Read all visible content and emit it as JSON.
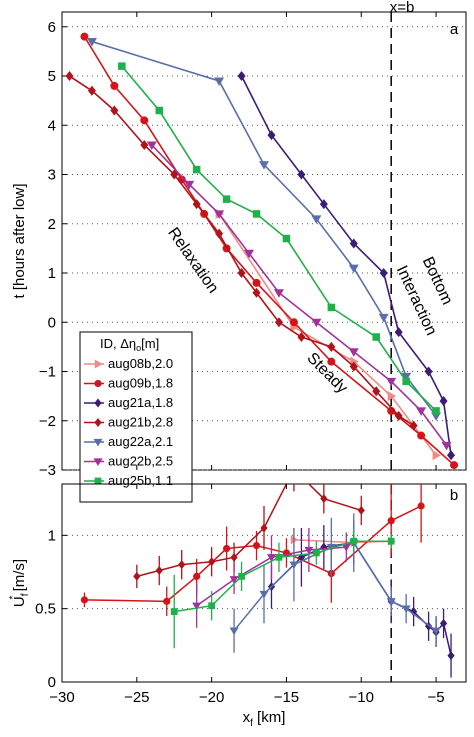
{
  "x_axis": {
    "label": "x",
    "label_sub": "f",
    "label_unit": " [km]",
    "ticks": [
      -30,
      -25,
      -20,
      -15,
      -10,
      -5
    ],
    "tick_labels": [
      "−30",
      "−25",
      "−20",
      "−15",
      "−10",
      "−5"
    ],
    "lim": [
      -30,
      -3
    ]
  },
  "xb": {
    "value": -8,
    "label": "x=b"
  },
  "chart_data": [
    {
      "type": "line",
      "panel_label": "a",
      "ylabel": "t [hours after low]",
      "ylim": [
        -3,
        6.3
      ],
      "yticks": [
        -3,
        -2,
        -1,
        0,
        1,
        2,
        3,
        4,
        5,
        6
      ],
      "ytick_labels": [
        "−3",
        "−2",
        "−1",
        "0",
        "1",
        "2",
        "3",
        "4",
        "5",
        "6"
      ],
      "grid": "horizontal dotted",
      "legend_placement": "bottom-left",
      "legend_title": "ID, Δη",
      "legend_title_sub": "o",
      "legend_title_unit": "[m]",
      "annotations": [
        {
          "text": "Relaxation",
          "x": -21.5,
          "y": 1.2,
          "rotate": 55
        },
        {
          "text": "Steady",
          "x": -12.5,
          "y": -1.1,
          "rotate": 45
        },
        {
          "text": "Bottom",
          "x": -5.2,
          "y": 0.8,
          "rotate": 65
        },
        {
          "text": "Interaction",
          "x": -6.6,
          "y": 0.4,
          "rotate": 65
        }
      ],
      "series": [
        {
          "name": "aug08b,2.0",
          "color": "#f08a84",
          "marker": "triangle-right",
          "x": [
            -19.5,
            -14.5,
            -10.5,
            -8.0,
            -5.0
          ],
          "y": [
            2.2,
            -0.1,
            -0.8,
            -1.5,
            -2.7
          ]
        },
        {
          "name": "aug09b,1.8",
          "color": "#d41419",
          "marker": "circle",
          "x": [
            -28.5,
            -26.5,
            -24.5,
            -22.0,
            -20.5,
            -19.0,
            -17.0,
            -14.5,
            -12.0,
            -8.0,
            -6.0,
            -3.8
          ],
          "y": [
            5.8,
            4.8,
            4.1,
            2.9,
            2.2,
            1.5,
            0.8,
            0.0,
            -0.8,
            -1.8,
            -2.3,
            -2.9
          ]
        },
        {
          "name": "aug21a,1.8",
          "color": "#3c1d75",
          "marker": "diamond",
          "x": [
            -18.0,
            -16.0,
            -14.0,
            -12.5,
            -10.5,
            -8.5,
            -7.5,
            -5.5,
            -4.5,
            -4.0
          ],
          "y": [
            5.0,
            3.8,
            3.0,
            2.4,
            1.6,
            1.0,
            -0.2,
            -1.0,
            -1.6,
            -2.7
          ]
        },
        {
          "name": "aug21b,2.8",
          "color": "#b0131a",
          "marker": "diamond",
          "x": [
            -29.5,
            -28.0,
            -26.5,
            -24.5,
            -22.5,
            -21.0,
            -19.5,
            -18.0,
            -17.0,
            -15.5,
            -14.0,
            -12.0,
            -10.5,
            -9.0,
            -7.5,
            -6.5
          ],
          "y": [
            5.0,
            4.7,
            4.3,
            3.6,
            3.0,
            2.4,
            1.8,
            1.0,
            0.6,
            0.0,
            -0.3,
            -0.5,
            -0.9,
            -1.4,
            -1.9,
            -2.1
          ]
        },
        {
          "name": "aug22a,2.1",
          "color": "#586fa8",
          "marker": "triangle-down",
          "x": [
            -28.0,
            -19.5,
            -16.5,
            -13.0,
            -10.5,
            -8.5,
            -7.0,
            -5.0
          ],
          "y": [
            5.7,
            4.9,
            3.2,
            2.1,
            1.1,
            0.1,
            -1.1,
            -1.9
          ]
        },
        {
          "name": "aug22b,2.5",
          "color": "#a0329a",
          "marker": "triangle-down",
          "x": [
            -24.0,
            -21.5,
            -19.5,
            -17.5,
            -15.5,
            -13.0,
            -10.5,
            -8.0,
            -6.0,
            -4.3
          ],
          "y": [
            3.6,
            2.8,
            2.2,
            1.4,
            0.6,
            0.0,
            -0.6,
            -1.2,
            -1.8,
            -2.5
          ]
        },
        {
          "name": "aug25b,1.1",
          "color": "#1fb04a",
          "marker": "square",
          "x": [
            -26.0,
            -23.5,
            -21.0,
            -19.0,
            -17.0,
            -15.0,
            -12.0,
            -9.0,
            -7.0,
            -5.0
          ],
          "y": [
            5.2,
            4.3,
            3.1,
            2.5,
            2.2,
            1.7,
            0.3,
            -0.3,
            -1.2,
            -1.8
          ]
        }
      ]
    },
    {
      "type": "scatter",
      "panel_label": "b",
      "ylabel": "U",
      "ylabel_sub": "f",
      "ylabel_sup": "*",
      "ylabel_unit": " [m/s]",
      "ylim": [
        0,
        1.35
      ],
      "yticks": [
        0,
        0.5,
        1
      ],
      "ytick_labels": [
        "0",
        "0.5",
        "1"
      ],
      "grid": "horizontal dotted",
      "series": [
        {
          "color": "#f08a84",
          "marker": "triangle-right",
          "x": [
            -14.5,
            -10.5,
            -8.0
          ],
          "y": [
            0.97,
            0.95,
            0.96
          ],
          "err": [
            0.08,
            0.08,
            0.08
          ]
        },
        {
          "color": "#d41419",
          "marker": "circle",
          "x": [
            -28.5,
            -23.0,
            -21.0,
            -19.0,
            -17.0,
            -15.0,
            -12.0,
            -8.0,
            -6.0
          ],
          "y": [
            0.56,
            0.55,
            0.72,
            0.91,
            0.93,
            0.88,
            0.74,
            1.1,
            1.2
          ],
          "err": [
            0.05,
            0.1,
            0.12,
            0.15,
            0.1,
            0.1,
            0.2,
            0.25,
            0.25
          ]
        },
        {
          "color": "#3c1d75",
          "marker": "diamond",
          "x": [
            -16.0,
            -14.0,
            -12.5,
            -10.5,
            -8.0,
            -6.5,
            -5.5,
            -5.0,
            -4.5,
            -4.0
          ],
          "y": [
            0.65,
            0.85,
            0.92,
            0.95,
            0.55,
            0.48,
            0.38,
            0.34,
            0.4,
            0.18
          ],
          "err": [
            0.15,
            0.2,
            0.15,
            0.15,
            0.15,
            0.1,
            0.1,
            0.1,
            0.1,
            0.15
          ]
        },
        {
          "color": "#b0131a",
          "marker": "diamond",
          "x": [
            -25.0,
            -23.5,
            -22.0,
            -20.0,
            -18.5,
            -16.5,
            -14.5,
            -12.5,
            -10.0
          ],
          "y": [
            0.72,
            0.76,
            0.8,
            0.82,
            0.85,
            1.05,
            1.45,
            1.25,
            1.17
          ],
          "err": [
            0.08,
            0.1,
            0.1,
            0.1,
            0.1,
            0.15,
            0.15,
            0.1,
            0.1
          ]
        },
        {
          "color": "#586fa8",
          "marker": "triangle-down",
          "x": [
            -18.5,
            -16.5,
            -14.5,
            -12.0,
            -10.5,
            -8.0,
            -7.0,
            -5.0
          ],
          "y": [
            0.35,
            0.6,
            0.8,
            0.92,
            0.95,
            0.55,
            0.5,
            0.35
          ],
          "err": [
            0.15,
            0.2,
            0.25,
            0.2,
            0.2,
            0.1,
            0.1,
            0.1
          ]
        },
        {
          "color": "#a0329a",
          "marker": "triangle-down",
          "x": [
            -21.0,
            -18.5,
            -16.0,
            -13.5,
            -11.0
          ],
          "y": [
            0.52,
            0.7,
            0.85,
            0.9,
            0.92
          ],
          "err": [
            0.15,
            0.1,
            0.15,
            0.15,
            0.1
          ]
        },
        {
          "color": "#1fb04a",
          "marker": "square",
          "x": [
            -22.5,
            -20.0,
            -18.0,
            -15.5,
            -13.0,
            -10.5,
            -8.0
          ],
          "y": [
            0.48,
            0.52,
            0.72,
            0.85,
            0.88,
            0.96,
            0.96
          ],
          "err": [
            0.25,
            0.1,
            0.1,
            0.1,
            0.08,
            0.08,
            0.05
          ]
        }
      ]
    }
  ]
}
